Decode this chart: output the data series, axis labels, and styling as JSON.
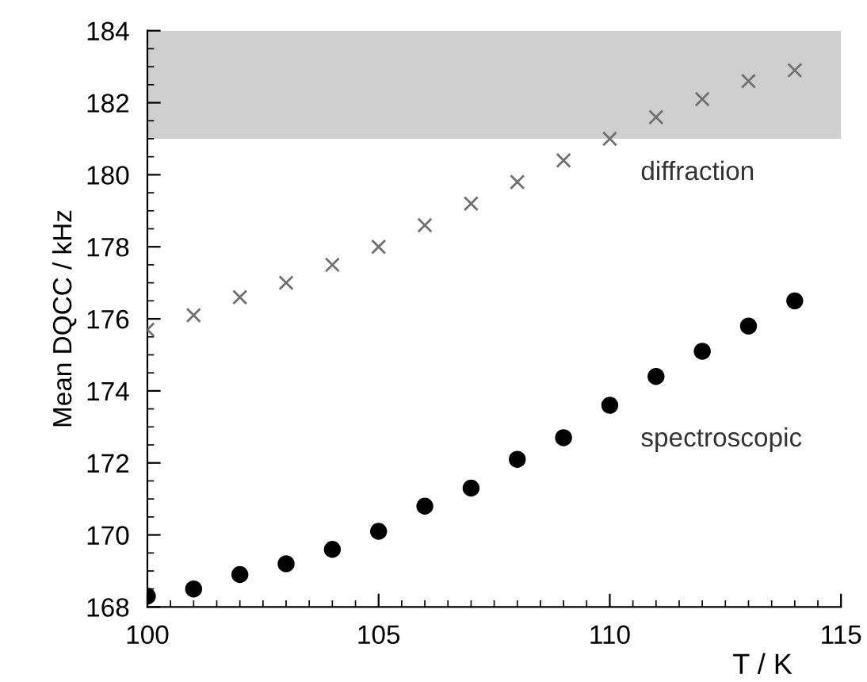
{
  "chart_data": {
    "type": "scatter",
    "xlabel": "T / K",
    "ylabel": "Mean DQCC / kHz",
    "x": [
      100,
      101,
      102,
      103,
      104,
      105,
      106,
      107,
      108,
      109,
      110,
      111,
      112,
      113,
      114
    ],
    "series": [
      {
        "name": "diffraction",
        "color": "#707070",
        "marker": "cross",
        "values": [
          175.7,
          176.1,
          176.6,
          177.0,
          177.5,
          178.0,
          178.6,
          179.2,
          179.8,
          180.4,
          181.0,
          181.6,
          182.1,
          182.6,
          182.9
        ]
      },
      {
        "name": "spectroscopic",
        "color": "#000000",
        "marker": "circle",
        "values": [
          168.3,
          168.5,
          168.9,
          169.2,
          169.6,
          170.1,
          170.8,
          171.3,
          172.1,
          172.7,
          173.6,
          174.4,
          175.1,
          175.8,
          176.5
        ]
      }
    ],
    "bands": [
      {
        "axis": "y",
        "from": 181,
        "to": 184,
        "color": "#cfcfcf"
      }
    ],
    "xlim": [
      100,
      115
    ],
    "ylim": [
      168,
      184
    ],
    "xticks": [
      100,
      105,
      110,
      115
    ],
    "yticks": [
      168,
      170,
      172,
      174,
      176,
      178,
      180,
      182,
      184
    ],
    "grid": false,
    "legend": false
  }
}
